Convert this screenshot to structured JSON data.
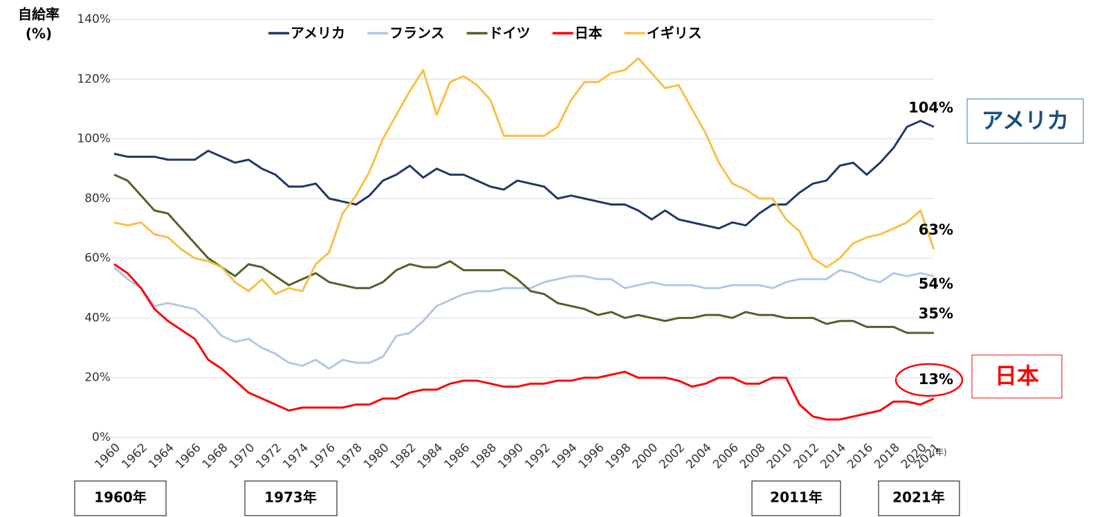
{
  "chart_data": {
    "type": "line",
    "y_label": [
      "自給率",
      "(%)"
    ],
    "x_unit": "(年)",
    "x": [
      1960,
      1961,
      1962,
      1963,
      1964,
      1965,
      1966,
      1967,
      1968,
      1969,
      1970,
      1971,
      1972,
      1973,
      1974,
      1975,
      1976,
      1977,
      1978,
      1979,
      1980,
      1981,
      1982,
      1983,
      1984,
      1985,
      1986,
      1987,
      1988,
      1989,
      1990,
      1991,
      1992,
      1993,
      1994,
      1995,
      1996,
      1997,
      1998,
      1999,
      2000,
      2001,
      2002,
      2003,
      2004,
      2005,
      2006,
      2007,
      2008,
      2009,
      2010,
      2011,
      2012,
      2013,
      2014,
      2015,
      2016,
      2017,
      2018,
      2019,
      2020,
      2021
    ],
    "xlim": [
      1960,
      2021
    ],
    "xticks": [
      1960,
      1962,
      1964,
      1966,
      1968,
      1970,
      1972,
      1974,
      1976,
      1978,
      1980,
      1982,
      1984,
      1986,
      1988,
      1990,
      1992,
      1994,
      1996,
      1998,
      2000,
      2002,
      2004,
      2006,
      2008,
      2010,
      2012,
      2014,
      2016,
      2018,
      2020,
      2021
    ],
    "ylim": [
      0,
      140
    ],
    "yticks": [
      {
        "value": 0,
        "label": "0%"
      },
      {
        "value": 20,
        "label": "20%"
      },
      {
        "value": 40,
        "label": "40%"
      },
      {
        "value": 60,
        "label": "60%"
      },
      {
        "value": 80,
        "label": "80%"
      },
      {
        "value": 100,
        "label": "100%"
      },
      {
        "value": 120,
        "label": "120%"
      },
      {
        "value": 140,
        "label": "140%"
      }
    ],
    "grid": true,
    "legend": "top",
    "series": [
      {
        "name": "アメリカ",
        "color": "#1f3864",
        "values": [
          95,
          94,
          94,
          94,
          93,
          93,
          93,
          96,
          94,
          92,
          93,
          90,
          88,
          84,
          84,
          85,
          80,
          79,
          78,
          81,
          86,
          88,
          91,
          87,
          90,
          88,
          88,
          86,
          84,
          83,
          86,
          85,
          84,
          80,
          81,
          80,
          79,
          78,
          78,
          76,
          73,
          76,
          73,
          72,
          71,
          70,
          72,
          71,
          75,
          78,
          78,
          82,
          85,
          86,
          91,
          92,
          88,
          92,
          97,
          104,
          106,
          104
        ],
        "value_labels": [
          null,
          null,
          null,
          null,
          null,
          null,
          null,
          null,
          null,
          null,
          null,
          null,
          null,
          null,
          null,
          null,
          null,
          null,
          null,
          null,
          null,
          null,
          null,
          null,
          null,
          null,
          null,
          null,
          null,
          null,
          null,
          null,
          null,
          null,
          null,
          null,
          null,
          null,
          null,
          null,
          null,
          null,
          null,
          null,
          null,
          null,
          null,
          null,
          null,
          null,
          null,
          null,
          null,
          null,
          null,
          null,
          null,
          null,
          null,
          null,
          null,
          "104%"
        ]
      },
      {
        "name": "フランス",
        "color": "#b4c7e7",
        "values": [
          57,
          53,
          50,
          44,
          45,
          44,
          43,
          39,
          34,
          32,
          33,
          30,
          28,
          25,
          24,
          26,
          23,
          26,
          25,
          25,
          27,
          34,
          35,
          39,
          44,
          46,
          48,
          49,
          49,
          50,
          50,
          50,
          52,
          53,
          54,
          54,
          53,
          53,
          50,
          51,
          52,
          51,
          51,
          51,
          50,
          50,
          51,
          51,
          51,
          50,
          52,
          53,
          53,
          53,
          56,
          55,
          53,
          52,
          55,
          54,
          55,
          54
        ],
        "value_labels": [
          null,
          null,
          null,
          null,
          null,
          null,
          null,
          null,
          null,
          null,
          null,
          null,
          null,
          null,
          null,
          null,
          null,
          null,
          null,
          null,
          null,
          null,
          null,
          null,
          null,
          null,
          null,
          null,
          null,
          null,
          null,
          null,
          null,
          null,
          null,
          null,
          null,
          null,
          null,
          null,
          null,
          null,
          null,
          null,
          null,
          null,
          null,
          null,
          null,
          null,
          null,
          null,
          null,
          null,
          null,
          null,
          null,
          null,
          null,
          null,
          null,
          "54%"
        ]
      },
      {
        "name": "ドイツ",
        "color": "#4f6228",
        "values": [
          88,
          86,
          81,
          76,
          75,
          70,
          65,
          60,
          57,
          54,
          58,
          57,
          54,
          51,
          53,
          55,
          52,
          51,
          50,
          50,
          52,
          56,
          58,
          57,
          57,
          59,
          56,
          56,
          56,
          56,
          53,
          49,
          48,
          45,
          44,
          43,
          41,
          42,
          40,
          41,
          40,
          39,
          40,
          40,
          41,
          41,
          40,
          42,
          41,
          41,
          40,
          40,
          40,
          38,
          39,
          39,
          37,
          37,
          37,
          35,
          35,
          35
        ],
        "value_labels": [
          null,
          null,
          null,
          null,
          null,
          null,
          null,
          null,
          null,
          null,
          null,
          null,
          null,
          null,
          null,
          null,
          null,
          null,
          null,
          null,
          null,
          null,
          null,
          null,
          null,
          null,
          null,
          null,
          null,
          null,
          null,
          null,
          null,
          null,
          null,
          null,
          null,
          null,
          null,
          null,
          null,
          null,
          null,
          null,
          null,
          null,
          null,
          null,
          null,
          null,
          null,
          null,
          null,
          null,
          null,
          null,
          null,
          null,
          null,
          null,
          null,
          "35%"
        ]
      },
      {
        "name": "日本",
        "color": "#ff0000",
        "values": [
          58,
          55,
          50,
          43,
          39,
          36,
          33,
          26,
          23,
          19,
          15,
          13,
          11,
          9,
          10,
          10,
          10,
          10,
          11,
          11,
          13,
          13,
          15,
          16,
          16,
          18,
          19,
          19,
          18,
          17,
          17,
          18,
          18,
          19,
          19,
          20,
          20,
          21,
          22,
          20,
          20,
          20,
          19,
          17,
          18,
          20,
          20,
          18,
          18,
          20,
          20,
          11,
          7,
          6,
          6,
          7,
          8,
          9,
          12,
          12,
          11,
          13
        ],
        "value_labels": [
          null,
          null,
          null,
          null,
          null,
          null,
          null,
          null,
          null,
          null,
          null,
          null,
          null,
          null,
          null,
          null,
          null,
          null,
          null,
          null,
          null,
          null,
          null,
          null,
          null,
          null,
          null,
          null,
          null,
          null,
          null,
          null,
          null,
          null,
          null,
          null,
          null,
          null,
          null,
          null,
          null,
          null,
          null,
          null,
          null,
          null,
          null,
          null,
          null,
          null,
          null,
          null,
          null,
          null,
          null,
          null,
          null,
          null,
          null,
          null,
          null,
          "13%"
        ]
      },
      {
        "name": "イギリス",
        "color": "#fbbf45",
        "values": [
          72,
          71,
          72,
          68,
          67,
          63,
          60,
          59,
          57,
          52,
          49,
          53,
          48,
          50,
          49,
          58,
          62,
          75,
          81,
          89,
          100,
          108,
          116,
          123,
          108,
          119,
          121,
          118,
          113,
          101,
          101,
          101,
          101,
          104,
          113,
          119,
          119,
          122,
          123,
          127,
          122,
          117,
          118,
          110,
          102,
          92,
          85,
          83,
          80,
          80,
          73,
          69,
          60,
          57,
          60,
          65,
          67,
          68,
          70,
          72,
          76,
          63
        ],
        "value_labels": [
          null,
          null,
          null,
          null,
          null,
          null,
          null,
          null,
          null,
          null,
          null,
          null,
          null,
          null,
          null,
          null,
          null,
          null,
          null,
          null,
          null,
          null,
          null,
          null,
          null,
          null,
          null,
          null,
          null,
          null,
          null,
          null,
          null,
          null,
          null,
          null,
          null,
          null,
          null,
          null,
          null,
          null,
          null,
          null,
          null,
          null,
          null,
          null,
          null,
          null,
          null,
          null,
          null,
          null,
          null,
          null,
          null,
          null,
          null,
          null,
          null,
          "63%"
        ]
      }
    ],
    "callouts": [
      "アメリカ",
      "日本"
    ],
    "periods": [
      "1960年",
      "1973年",
      "2011年",
      "2021年"
    ]
  }
}
